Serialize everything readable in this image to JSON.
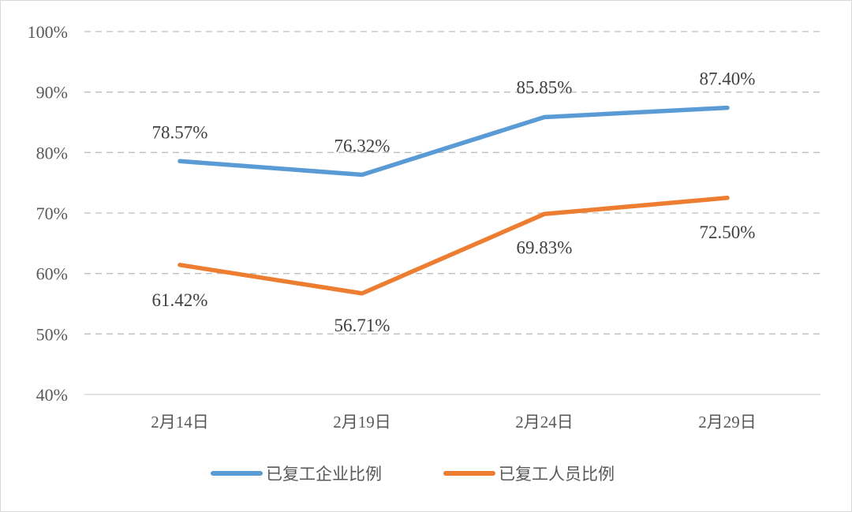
{
  "chart_data": {
    "type": "line",
    "title": "",
    "xlabel": "",
    "ylabel": "",
    "categories": [
      "2月14日",
      "2月19日",
      "2月24日",
      "2月29日"
    ],
    "y_ticks": [
      "40%",
      "50%",
      "60%",
      "70%",
      "80%",
      "90%",
      "100%"
    ],
    "ylim": [
      40,
      100
    ],
    "grid": "horizontal dashed",
    "legend_position": "bottom",
    "series": [
      {
        "name": "已复工企业比例",
        "color": "#5B9BD5",
        "values": [
          78.57,
          76.32,
          85.85,
          87.4
        ],
        "labels": [
          "78.57%",
          "76.32%",
          "85.85%",
          "87.40%"
        ]
      },
      {
        "name": "已复工人员比例",
        "color": "#ED7D31",
        "values": [
          61.42,
          56.71,
          69.83,
          72.5
        ],
        "labels": [
          "61.42%",
          "56.71%",
          "69.83%",
          "72.50%"
        ]
      }
    ]
  }
}
